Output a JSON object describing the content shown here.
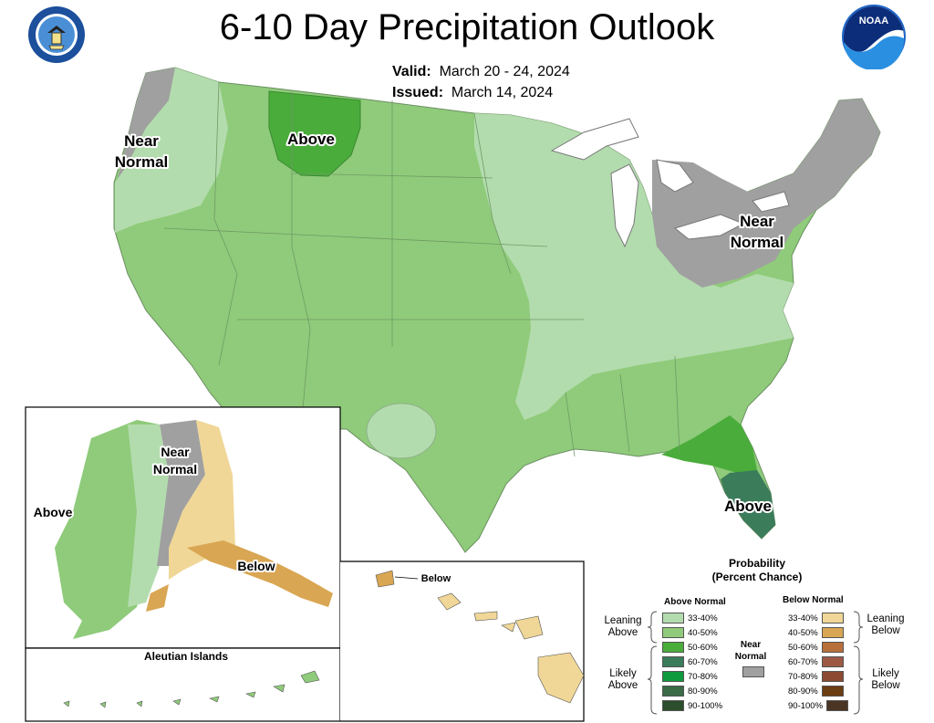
{
  "header": {
    "title": "6-10 Day Precipitation Outlook",
    "valid_label": "Valid:",
    "valid_value": "March 20 - 24, 2024",
    "issued_label": "Issued:",
    "issued_value": "March 14, 2024"
  },
  "logos": {
    "left": "dept-of-commerce-seal",
    "right": "noaa-logo",
    "right_text": "NOAA"
  },
  "map_labels": {
    "nw": [
      "Near",
      "Normal"
    ],
    "montana": "Above",
    "northeast": [
      "Near",
      "Normal"
    ],
    "florida": "Above",
    "alaska_above": "Above",
    "alaska_near": [
      "Near",
      "Normal"
    ],
    "alaska_below": "Below",
    "aleutian": "Aleutian Islands",
    "hawaii_below": "Below"
  },
  "legend": {
    "title": [
      "Probability",
      "(Percent Chance)"
    ],
    "above_head": "Above Normal",
    "below_head": "Below Normal",
    "near_label": [
      "Near",
      "Normal"
    ],
    "leaning_above": [
      "Leaning",
      "Above"
    ],
    "likely_above": [
      "Likely",
      "Above"
    ],
    "leaning_below": [
      "Leaning",
      "Below"
    ],
    "likely_below": [
      "Likely",
      "Below"
    ],
    "above": [
      {
        "label": "33-40%",
        "color": "#b3dcae"
      },
      {
        "label": "40-50%",
        "color": "#8fcb7a"
      },
      {
        "label": "50-60%",
        "color": "#4aac3b"
      },
      {
        "label": "60-70%",
        "color": "#3b7c5a"
      },
      {
        "label": "70-80%",
        "color": "#0f9a3e"
      },
      {
        "label": "80-90%",
        "color": "#3a6a46"
      },
      {
        "label": "90-100%",
        "color": "#2b4f2c"
      }
    ],
    "below": [
      {
        "label": "33-40%",
        "color": "#f0d797"
      },
      {
        "label": "40-50%",
        "color": "#d9a653"
      },
      {
        "label": "50-60%",
        "color": "#b8703a"
      },
      {
        "label": "60-70%",
        "color": "#9c5a45"
      },
      {
        "label": "70-80%",
        "color": "#8c4a33"
      },
      {
        "label": "80-90%",
        "color": "#6b3d12"
      },
      {
        "label": "90-100%",
        "color": "#4a3424"
      }
    ],
    "near_color": "#a0a0a0"
  }
}
